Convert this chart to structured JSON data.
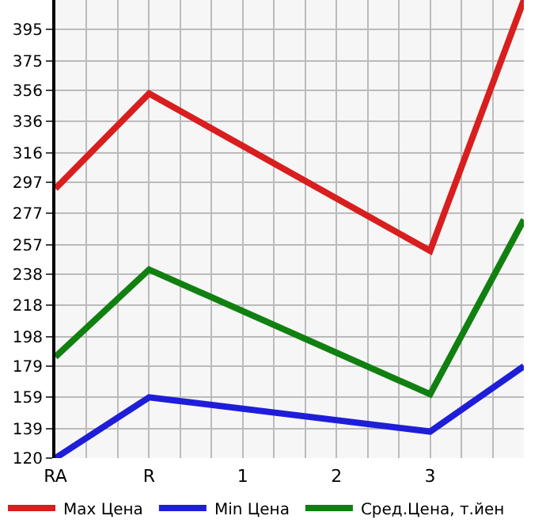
{
  "chart_data": {
    "type": "line",
    "categories": [
      "RA",
      "R",
      "1",
      "2",
      "3",
      null
    ],
    "series": [
      {
        "name": "Max Цена",
        "color": "#d81e1e",
        "values": [
          293,
          354,
          null,
          null,
          253,
          414
        ]
      },
      {
        "name": "Min Цена",
        "color": "#1e1ed8",
        "values": [
          120,
          159,
          null,
          null,
          137,
          179
        ]
      },
      {
        "name": "Сред.Цена, т.йен",
        "color": "#108010",
        "values": [
          185,
          241,
          null,
          null,
          161,
          273
        ]
      }
    ],
    "ylim": [
      120,
      414
    ],
    "yticks": [
      120,
      139,
      159,
      179,
      198,
      218,
      238,
      257,
      277,
      297,
      316,
      336,
      356,
      375,
      395
    ],
    "grid": true,
    "legend": "bottom",
    "marker": "none",
    "line_style": "solid"
  }
}
